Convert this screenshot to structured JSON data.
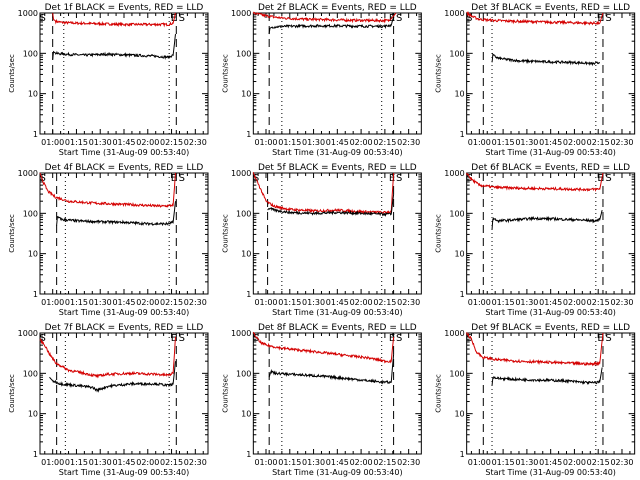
{
  "colors": {
    "events": "#000000",
    "lld": "#d40000",
    "frame": "#000000",
    "background": "#ffffff"
  },
  "chart_data": [
    {
      "type": "line",
      "title": "Det 1f BLACK = Events, RED = LLD",
      "xlabel": "Start Time (31-Aug-09 00:53:40)",
      "ylabel": "Counts/sec",
      "xticks": [
        "01:00",
        "01:15",
        "01:30",
        "01:45",
        "02:00",
        "02:15",
        "02:30"
      ],
      "yticks": [
        "1",
        "10",
        "100",
        "1000"
      ],
      "yscale": "log",
      "ylim": [
        1,
        1000
      ],
      "xlim_minutes": [
        52,
        158
      ],
      "markers": [
        {
          "label": "S",
          "minutes": 53.7,
          "style": "none"
        },
        {
          "label": "E",
          "minutes": 136.5,
          "style": "none"
        },
        {
          "label": "S",
          "minutes": 141.5,
          "style": "none"
        }
      ],
      "vlines": [
        {
          "minutes": 60,
          "style": "dashed"
        },
        {
          "minutes": 67,
          "style": "dotted"
        },
        {
          "minutes": 133.5,
          "style": "dotted"
        },
        {
          "minutes": 138,
          "style": "dashed"
        }
      ],
      "series": [
        {
          "name": "LLD",
          "color": "#d40000",
          "x": [
            60,
            60.5,
            62,
            66,
            75,
            90,
            105,
            120,
            133,
            136,
            137.5
          ],
          "y": [
            1000,
            700,
            620,
            580,
            560,
            540,
            520,
            520,
            520,
            560,
            1000
          ]
        },
        {
          "name": "Events",
          "color": "#000000",
          "x": [
            60,
            60.5,
            62,
            68,
            80,
            95,
            110,
            125,
            133,
            136,
            137.5
          ],
          "y": [
            70,
            110,
            100,
            95,
            90,
            95,
            90,
            85,
            80,
            90,
            300
          ]
        }
      ]
    },
    {
      "type": "line",
      "title": "Det 2f BLACK = Events, RED = LLD",
      "xlabel": "Start Time (31-Aug-09 00:53:40)",
      "ylabel": "Counts/sec",
      "xticks": [
        "01:00",
        "01:15",
        "01:30",
        "01:45",
        "02:00",
        "02:15",
        "02:30"
      ],
      "yticks": [
        "1",
        "10",
        "100",
        "1000"
      ],
      "yscale": "log",
      "ylim": [
        1,
        1000
      ],
      "xlim_minutes": [
        52,
        158
      ],
      "markers": [
        {
          "label": "E",
          "minutes": 139.5
        },
        {
          "label": "S",
          "minutes": 144
        }
      ],
      "vlines": [
        {
          "minutes": 62,
          "style": "dashed"
        },
        {
          "minutes": 70,
          "style": "dotted"
        },
        {
          "minutes": 133,
          "style": "dotted"
        },
        {
          "minutes": 140.5,
          "style": "dashed"
        }
      ],
      "series": [
        {
          "name": "LLD",
          "color": "#d40000",
          "x": [
            52,
            60,
            70,
            85,
            100,
            115,
            130,
            138,
            140,
            142
          ],
          "y": [
            1000,
            850,
            750,
            700,
            680,
            660,
            650,
            650,
            800,
            1000
          ]
        },
        {
          "name": "Events",
          "color": "#000000",
          "x": [
            62,
            62.5,
            64,
            75,
            90,
            105,
            120,
            135,
            139,
            140.5
          ],
          "y": [
            300,
            420,
            450,
            470,
            480,
            480,
            470,
            470,
            500,
            800
          ]
        }
      ]
    },
    {
      "type": "line",
      "title": "Det 3f BLACK = Events, RED = LLD",
      "xlabel": "Start Time (31-Aug-09 00:53:40)",
      "ylabel": "Counts/sec",
      "xticks": [
        "01:00",
        "01:15",
        "01:30",
        "01:45",
        "02:00",
        "02:15",
        "02:30"
      ],
      "yticks": [
        "1",
        "10",
        "100",
        "1000"
      ],
      "yscale": "log",
      "ylim": [
        1,
        1000
      ],
      "xlim_minutes": [
        52,
        158
      ],
      "markers": [
        {
          "label": "S",
          "minutes": 53.7
        },
        {
          "label": "E",
          "minutes": 136.5
        },
        {
          "label": "S",
          "minutes": 141.5
        }
      ],
      "vlines": [
        {
          "minutes": 62.5,
          "style": "dashed"
        },
        {
          "minutes": 68,
          "style": "dotted"
        },
        {
          "minutes": 133.5,
          "style": "dotted"
        },
        {
          "minutes": 138,
          "style": "dashed"
        }
      ],
      "series": [
        {
          "name": "LLD",
          "color": "#d40000",
          "x": [
            52,
            56,
            60,
            70,
            85,
            100,
            115,
            130,
            136,
            138
          ],
          "y": [
            1000,
            800,
            700,
            650,
            620,
            600,
            580,
            560,
            560,
            1000
          ]
        },
        {
          "name": "Events",
          "color": "#000000",
          "x": [
            68,
            68.5,
            72,
            85,
            100,
            115,
            125,
            133,
            136
          ],
          "y": [
            60,
            90,
            75,
            65,
            62,
            60,
            58,
            55,
            60
          ]
        }
      ]
    },
    {
      "type": "line",
      "title": "Det 4f BLACK = Events, RED = LLD",
      "xlabel": "Start Time (31-Aug-09 00:53:40)",
      "ylabel": "Counts/sec",
      "xticks": [
        "01:00",
        "01:15",
        "01:30",
        "01:45",
        "02:00",
        "02:15",
        "02:30"
      ],
      "yticks": [
        "1",
        "10",
        "100",
        "1000"
      ],
      "yscale": "log",
      "ylim": [
        1,
        1000
      ],
      "xlim_minutes": [
        52,
        158
      ],
      "markers": [
        {
          "label": "S",
          "minutes": 53.7
        },
        {
          "label": "E",
          "minutes": 136.5
        },
        {
          "label": "S",
          "minutes": 141.5
        }
      ],
      "vlines": [
        {
          "minutes": 62.5,
          "style": "dashed"
        },
        {
          "minutes": 68,
          "style": "dotted"
        },
        {
          "minutes": 133.5,
          "style": "dotted"
        },
        {
          "minutes": 138,
          "style": "dashed"
        }
      ],
      "series": [
        {
          "name": "LLD",
          "color": "#d40000",
          "x": [
            52,
            54,
            57,
            62,
            70,
            85,
            100,
            115,
            130,
            136,
            137.5
          ],
          "y": [
            1000,
            600,
            350,
            250,
            200,
            180,
            170,
            160,
            150,
            160,
            1000
          ]
        },
        {
          "name": "Events",
          "color": "#000000",
          "x": [
            62.5,
            63,
            66,
            75,
            90,
            105,
            120,
            133,
            136,
            137.5
          ],
          "y": [
            50,
            80,
            70,
            65,
            62,
            60,
            55,
            55,
            60,
            200
          ]
        }
      ]
    },
    {
      "type": "line",
      "title": "Det 5f BLACK = Events, RED = LLD",
      "xlabel": "Start Time (31-Aug-09 00:53:40)",
      "ylabel": "Counts/sec",
      "xticks": [
        "01:00",
        "01:15",
        "01:30",
        "01:45",
        "02:00",
        "02:15",
        "02:30"
      ],
      "yticks": [
        "1",
        "10",
        "100",
        "1000"
      ],
      "yscale": "log",
      "ylim": [
        1,
        1000
      ],
      "xlim_minutes": [
        52,
        158
      ],
      "markers": [
        {
          "label": "S",
          "minutes": 53.7
        },
        {
          "label": "E",
          "minutes": 139.5
        },
        {
          "label": "S",
          "minutes": 144
        }
      ],
      "vlines": [
        {
          "minutes": 61,
          "style": "dashed"
        },
        {
          "minutes": 70,
          "style": "dotted"
        },
        {
          "minutes": 133,
          "style": "dotted"
        },
        {
          "minutes": 140.5,
          "style": "dashed"
        }
      ],
      "series": [
        {
          "name": "LLD",
          "color": "#d40000",
          "x": [
            52,
            56,
            60,
            65,
            75,
            90,
            105,
            120,
            135,
            139,
            140.5
          ],
          "y": [
            1000,
            450,
            200,
            150,
            125,
            115,
            120,
            110,
            105,
            110,
            1000
          ]
        },
        {
          "name": "Events",
          "color": "#000000",
          "x": [
            61,
            62,
            65,
            75,
            90,
            105,
            120,
            135,
            139,
            140.5
          ],
          "y": [
            120,
            135,
            120,
            105,
            100,
            105,
            100,
            95,
            95,
            300
          ]
        }
      ]
    },
    {
      "type": "line",
      "title": "Det 6f BLACK = Events, RED = LLD",
      "xlabel": "Start Time (31-Aug-09 00:53:40)",
      "ylabel": "Counts/sec",
      "xticks": [
        "01:00",
        "01:15",
        "01:30",
        "01:45",
        "02:00",
        "02:15",
        "02:30"
      ],
      "yticks": [
        "1",
        "10",
        "100",
        "1000"
      ],
      "yscale": "log",
      "ylim": [
        1,
        1000
      ],
      "xlim_minutes": [
        52,
        158
      ],
      "markers": [
        {
          "label": "S",
          "minutes": 53.7
        },
        {
          "label": "E",
          "minutes": 136.5
        },
        {
          "label": "S",
          "minutes": 141.5
        }
      ],
      "vlines": [
        {
          "minutes": 62.5,
          "style": "dashed"
        },
        {
          "minutes": 68,
          "style": "dotted"
        },
        {
          "minutes": 133.5,
          "style": "dotted"
        },
        {
          "minutes": 138,
          "style": "dashed"
        }
      ],
      "series": [
        {
          "name": "LLD",
          "color": "#d40000",
          "x": [
            52,
            55,
            60,
            70,
            85,
            100,
            115,
            130,
            136,
            138
          ],
          "y": [
            1000,
            700,
            500,
            440,
            420,
            410,
            400,
            390,
            400,
            1000
          ]
        },
        {
          "name": "Events",
          "color": "#000000",
          "x": [
            68,
            68.5,
            72,
            80,
            95,
            110,
            125,
            133,
            136,
            137.5
          ],
          "y": [
            40,
            75,
            65,
            68,
            75,
            72,
            68,
            65,
            70,
            120
          ]
        }
      ]
    },
    {
      "type": "line",
      "title": "Det 7f BLACK = Events, RED = LLD",
      "xlabel": "Start Time (31-Aug-09 00:53:40)",
      "ylabel": "Counts/sec",
      "xticks": [
        "01:00",
        "01:15",
        "01:30",
        "01:45",
        "02:00",
        "02:15",
        "02:30"
      ],
      "yticks": [
        "1",
        "10",
        "100",
        "1000"
      ],
      "yscale": "log",
      "ylim": [
        1,
        1000
      ],
      "xlim_minutes": [
        52,
        158
      ],
      "markers": [
        {
          "label": "S",
          "minutes": 53.7
        },
        {
          "label": "E",
          "minutes": 136.5
        },
        {
          "label": "S",
          "minutes": 141.5
        }
      ],
      "vlines": [
        {
          "minutes": 62.5,
          "style": "dashed"
        },
        {
          "minutes": 68,
          "style": "dotted"
        },
        {
          "minutes": 133.5,
          "style": "dotted"
        },
        {
          "minutes": 138,
          "style": "dashed"
        }
      ],
      "series": [
        {
          "name": "LLD",
          "color": "#d40000",
          "x": [
            52,
            55,
            58,
            62,
            70,
            80,
            88,
            95,
            110,
            125,
            133,
            136,
            137.5
          ],
          "y": [
            700,
            500,
            300,
            180,
            120,
            100,
            85,
            95,
            100,
            95,
            90,
            100,
            800
          ]
        },
        {
          "name": "Events",
          "color": "#000000",
          "x": [
            58,
            60,
            65,
            75,
            85,
            88,
            95,
            110,
            125,
            133,
            136,
            137.5
          ],
          "y": [
            80,
            65,
            55,
            50,
            45,
            38,
            48,
            55,
            55,
            50,
            55,
            200
          ]
        }
      ]
    },
    {
      "type": "line",
      "title": "Det 8f BLACK = Events, RED = LLD",
      "xlabel": "Start Time (31-Aug-09 00:53:40)",
      "ylabel": "Counts/sec",
      "xticks": [
        "01:00",
        "01:15",
        "01:30",
        "01:45",
        "02:00",
        "02:15",
        "02:30"
      ],
      "yticks": [
        "1",
        "10",
        "100",
        "1000"
      ],
      "yscale": "log",
      "ylim": [
        1,
        1000
      ],
      "xlim_minutes": [
        52,
        158
      ],
      "markers": [
        {
          "label": "S",
          "minutes": 53.7
        },
        {
          "label": "E",
          "minutes": 139.5
        },
        {
          "label": "S",
          "minutes": 144
        }
      ],
      "vlines": [
        {
          "minutes": 62,
          "style": "dashed"
        },
        {
          "minutes": 70,
          "style": "dotted"
        },
        {
          "minutes": 133,
          "style": "dotted"
        },
        {
          "minutes": 140.5,
          "style": "dashed"
        }
      ],
      "series": [
        {
          "name": "LLD",
          "color": "#d40000",
          "x": [
            52,
            56,
            60,
            70,
            80,
            95,
            110,
            125,
            135,
            139,
            140.5
          ],
          "y": [
            1000,
            600,
            500,
            420,
            380,
            330,
            280,
            240,
            200,
            200,
            800
          ]
        },
        {
          "name": "Events",
          "color": "#000000",
          "x": [
            62,
            63,
            66,
            75,
            85,
            95,
            110,
            125,
            135,
            139,
            140.5
          ],
          "y": [
            80,
            110,
            100,
            95,
            90,
            85,
            75,
            65,
            60,
            60,
            300
          ]
        }
      ]
    },
    {
      "type": "line",
      "title": "Det 9f BLACK = Events, RED = LLD",
      "xlabel": "Start Time (31-Aug-09 00:53:40)",
      "ylabel": "Counts/sec",
      "xticks": [
        "01:00",
        "01:15",
        "01:30",
        "01:45",
        "02:00",
        "02:15",
        "02:30"
      ],
      "yticks": [
        "1",
        "10",
        "100",
        "1000"
      ],
      "yscale": "log",
      "ylim": [
        1,
        1000
      ],
      "xlim_minutes": [
        52,
        158
      ],
      "markers": [
        {
          "label": "S",
          "minutes": 53.7
        },
        {
          "label": "E",
          "minutes": 136.5
        },
        {
          "label": "S",
          "minutes": 141.5
        }
      ],
      "vlines": [
        {
          "minutes": 62.5,
          "style": "dashed"
        },
        {
          "minutes": 68,
          "style": "dotted"
        },
        {
          "minutes": 133.5,
          "style": "dotted"
        },
        {
          "minutes": 138,
          "style": "dashed"
        }
      ],
      "series": [
        {
          "name": "LLD",
          "color": "#d40000",
          "x": [
            52,
            55,
            58,
            62,
            70,
            85,
            100,
            115,
            130,
            136,
            138
          ],
          "y": [
            1000,
            700,
            350,
            250,
            220,
            200,
            190,
            180,
            170,
            180,
            1000
          ]
        },
        {
          "name": "Events",
          "color": "#000000",
          "x": [
            68,
            68.5,
            72,
            85,
            100,
            115,
            125,
            133,
            136,
            137.5
          ],
          "y": [
            50,
            80,
            75,
            70,
            68,
            65,
            60,
            58,
            62,
            140
          ]
        }
      ]
    }
  ]
}
